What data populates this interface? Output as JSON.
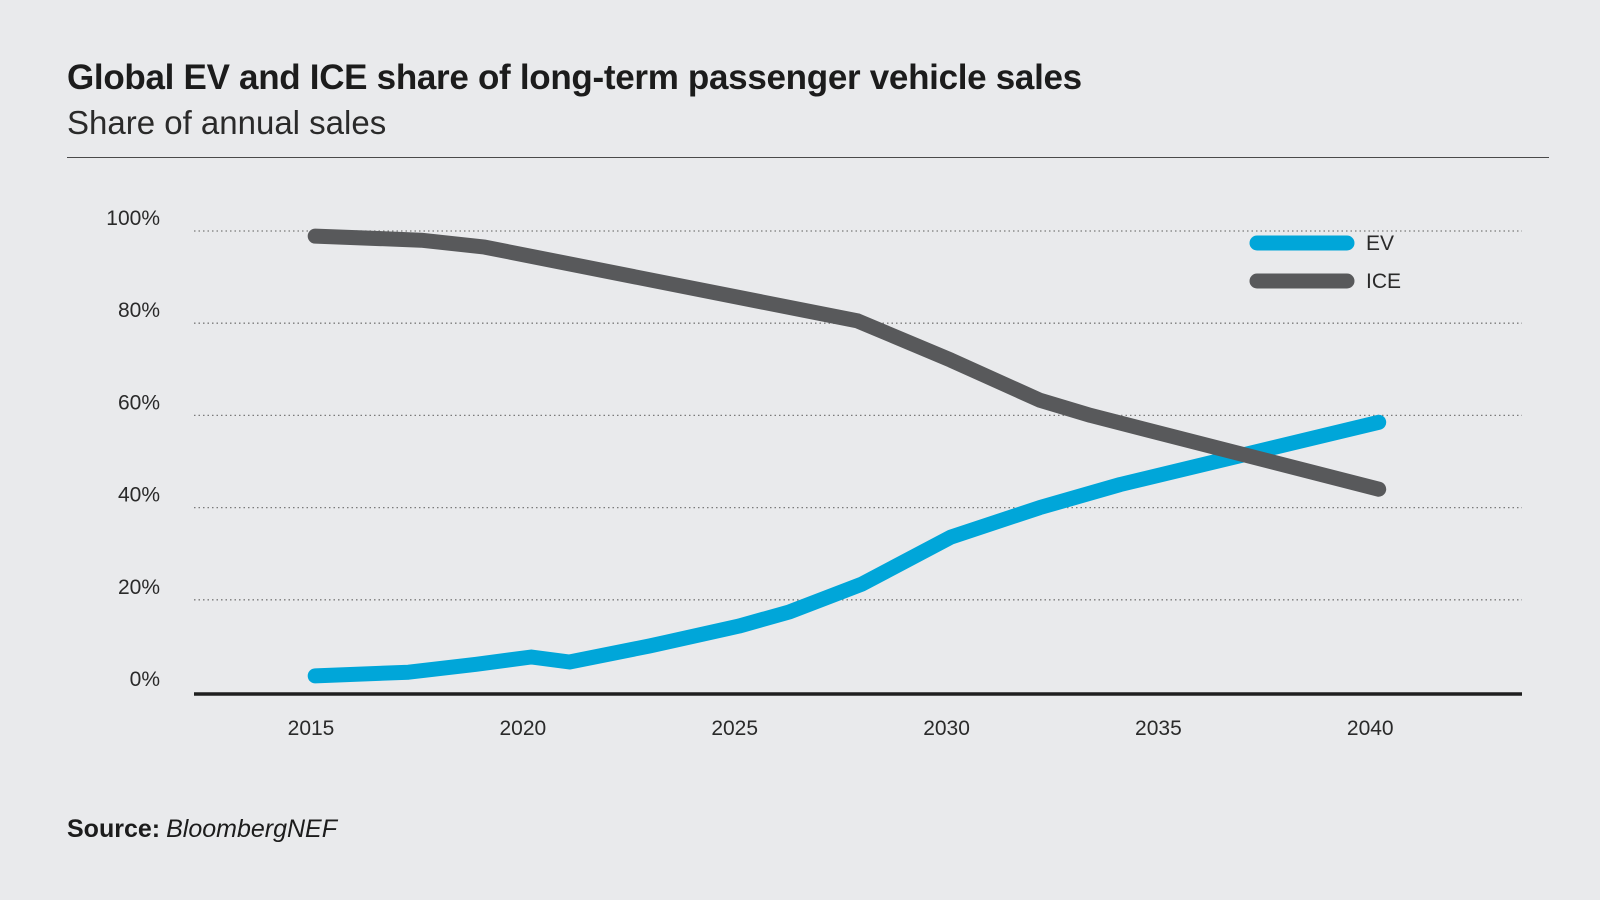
{
  "header": {
    "title": "Global EV and ICE share of long-term passenger vehicle sales",
    "subtitle": "Share of annual sales"
  },
  "footer": {
    "source_label": "Source:",
    "source_value": "BloombergNEF"
  },
  "chart_data": {
    "type": "line",
    "title": "Global EV and ICE share of long-term passenger vehicle sales",
    "subtitle": "Share of annual sales",
    "xlabel": "",
    "ylabel": "",
    "xlim": [
      2012.7,
      2043.2
    ],
    "ylim": [
      0,
      100
    ],
    "x_ticks": [
      2015,
      2020,
      2025,
      2030,
      2035,
      2040
    ],
    "x_tick_labels": [
      "2015",
      "2020",
      "2025",
      "2030",
      "2035",
      "2040"
    ],
    "y_ticks": [
      0,
      20,
      40,
      60,
      80,
      100
    ],
    "y_tick_labels": [
      "0%",
      "20%",
      "40%",
      "60%",
      "80%",
      "100%"
    ],
    "grid": "horizontal-dotted",
    "legend": "top-right",
    "series": [
      {
        "name": "EV",
        "color": "#00a6d9",
        "points": [
          [
            2015.1,
            3.5
          ],
          [
            2017.3,
            4.3
          ],
          [
            2018.9,
            6.0
          ],
          [
            2020.2,
            7.6
          ],
          [
            2021.1,
            6.5
          ],
          [
            2023.0,
            10.0
          ],
          [
            2025.1,
            14.3
          ],
          [
            2026.3,
            17.4
          ],
          [
            2028.0,
            23.4
          ],
          [
            2030.1,
            33.6
          ],
          [
            2032.2,
            40.0
          ],
          [
            2034.1,
            45.0
          ],
          [
            2040.2,
            58.5
          ]
        ]
      },
      {
        "name": "ICE",
        "color": "#58595b",
        "points": [
          [
            2015.1,
            98.9
          ],
          [
            2017.6,
            98.0
          ],
          [
            2019.1,
            96.5
          ],
          [
            2027.9,
            80.5
          ],
          [
            2030.1,
            72.0
          ],
          [
            2032.2,
            63.3
          ],
          [
            2033.4,
            60.0
          ],
          [
            2040.2,
            44.0
          ]
        ]
      }
    ]
  }
}
